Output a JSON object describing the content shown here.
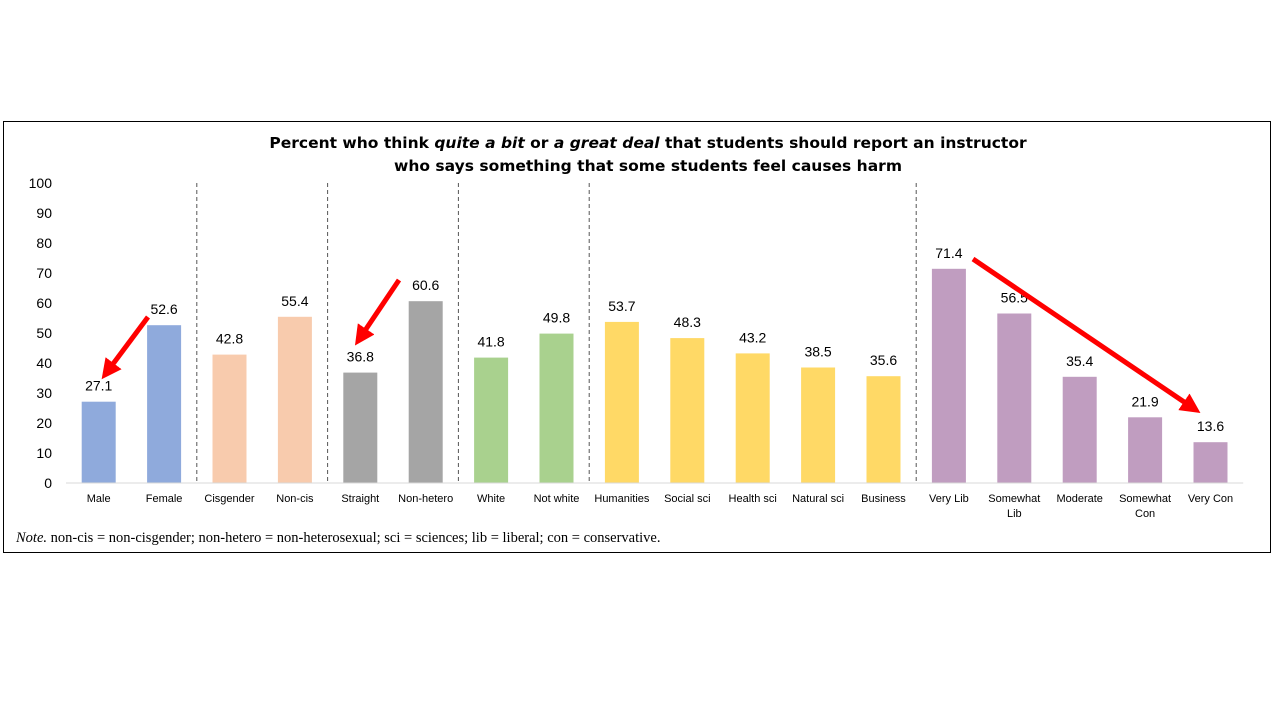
{
  "chart_data": {
    "type": "bar",
    "title_parts": [
      {
        "text": "Percent who think ",
        "italic": false
      },
      {
        "text": "quite a bit",
        "italic": true
      },
      {
        "text": " or ",
        "italic": false
      },
      {
        "text": "a great deal",
        "italic": true
      },
      {
        "text": " that students should report an instructor",
        "italic": false
      }
    ],
    "title_line2": "who says something that some students feel causes harm",
    "ylim": [
      0,
      100
    ],
    "yticks": [
      0,
      10,
      20,
      30,
      40,
      50,
      60,
      70,
      80,
      90,
      100
    ],
    "grid": false,
    "categories": [
      {
        "label": [
          "Male"
        ],
        "value": 27.1,
        "color": "#8FAADC"
      },
      {
        "label": [
          "Female"
        ],
        "value": 52.6,
        "color": "#8FAADC"
      },
      {
        "label": [
          "Cisgender"
        ],
        "value": 42.8,
        "color": "#F8CBAD"
      },
      {
        "label": [
          "Non-cis"
        ],
        "value": 55.4,
        "color": "#F8CBAD"
      },
      {
        "label": [
          "Straight"
        ],
        "value": 36.8,
        "color": "#A5A5A5"
      },
      {
        "label": [
          "Non-hetero"
        ],
        "value": 60.6,
        "color": "#A5A5A5"
      },
      {
        "label": [
          "White"
        ],
        "value": 41.8,
        "color": "#A9D18E"
      },
      {
        "label": [
          "Not white"
        ],
        "value": 49.8,
        "color": "#A9D18E"
      },
      {
        "label": [
          "Humanities"
        ],
        "value": 53.7,
        "color": "#FFD966"
      },
      {
        "label": [
          "Social sci"
        ],
        "value": 48.3,
        "color": "#FFD966"
      },
      {
        "label": [
          "Health sci"
        ],
        "value": 43.2,
        "color": "#FFD966"
      },
      {
        "label": [
          "Natural sci"
        ],
        "value": 38.5,
        "color": "#FFD966"
      },
      {
        "label": [
          "Business"
        ],
        "value": 35.6,
        "color": "#FFD966"
      },
      {
        "label": [
          "Very Lib"
        ],
        "value": 71.4,
        "color": "#C09DC0"
      },
      {
        "label": [
          "Somewhat",
          "Lib"
        ],
        "value": 56.5,
        "color": "#C09DC0"
      },
      {
        "label": [
          "Moderate"
        ],
        "value": 35.4,
        "color": "#C09DC0"
      },
      {
        "label": [
          "Somewhat",
          "Con"
        ],
        "value": 21.9,
        "color": "#C09DC0"
      },
      {
        "label": [
          "Very Con"
        ],
        "value": 13.6,
        "color": "#C09DC0"
      }
    ],
    "group_dividers_after": [
      1,
      3,
      5,
      7,
      12
    ],
    "arrow_color": "#FF0000"
  },
  "note": {
    "lead": "Note.",
    "text": " non-cis = non-cisgender; non-hetero = non-heterosexual; sci = sciences; lib = liberal; con = conservative."
  }
}
